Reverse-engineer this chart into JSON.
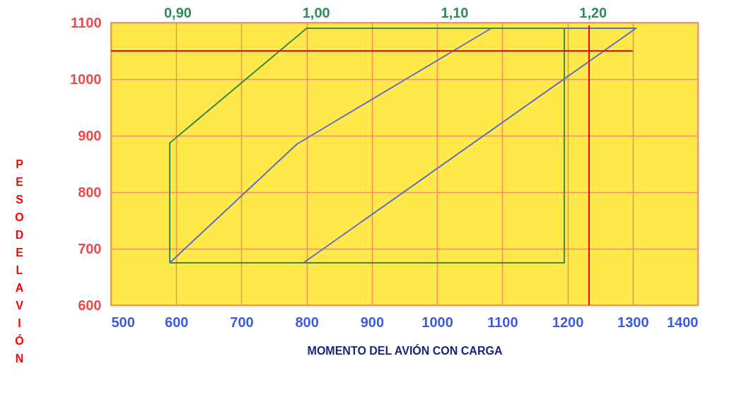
{
  "chart_data": {
    "type": "line",
    "xlabel": "MOMENTO DEL AVIÓN CON CARGA",
    "ylabel": "PESO DEL AVIÓN",
    "xlim": [
      500,
      1400
    ],
    "xticks": [
      500,
      600,
      700,
      800,
      900,
      1000,
      1100,
      1200,
      1300,
      1400
    ],
    "ylim": [
      600,
      1100
    ],
    "yticks": [
      600,
      700,
      800,
      900,
      1000,
      1100
    ],
    "x2lim": [
      0.852,
      1.276
    ],
    "x2ticks": [
      {
        "value": 0.9,
        "label": "0,90"
      },
      {
        "value": 1.0,
        "label": "1,00"
      },
      {
        "value": 1.1,
        "label": "1,10"
      },
      {
        "value": 1.2,
        "label": "1,20"
      }
    ],
    "grid": true,
    "marker": "none",
    "line_style": "solid",
    "series": [
      {
        "color": "#3a8a4a",
        "x": [
          590,
          590,
          800,
          1195
        ],
        "values": [
          675,
          887,
          1090,
          1090
        ]
      },
      {
        "color": "#3a8a4a",
        "x": [
          1195,
          1195,
          590
        ],
        "values": [
          1090,
          675,
          675
        ]
      },
      {
        "color": "#5b6fc8",
        "x": [
          590,
          785,
          1083
        ],
        "values": [
          675,
          885,
          1090
        ]
      },
      {
        "color": "#5b6fc8",
        "x": [
          795,
          1305,
          1195
        ],
        "values": [
          675,
          1090,
          1090
        ]
      },
      {
        "color": "#ff0000",
        "x": [
          500,
          1300
        ],
        "values": [
          1050,
          1050
        ]
      },
      {
        "color": "#ff0000",
        "x": [
          1233,
          1233
        ],
        "values": [
          600,
          1095
        ]
      }
    ]
  }
}
